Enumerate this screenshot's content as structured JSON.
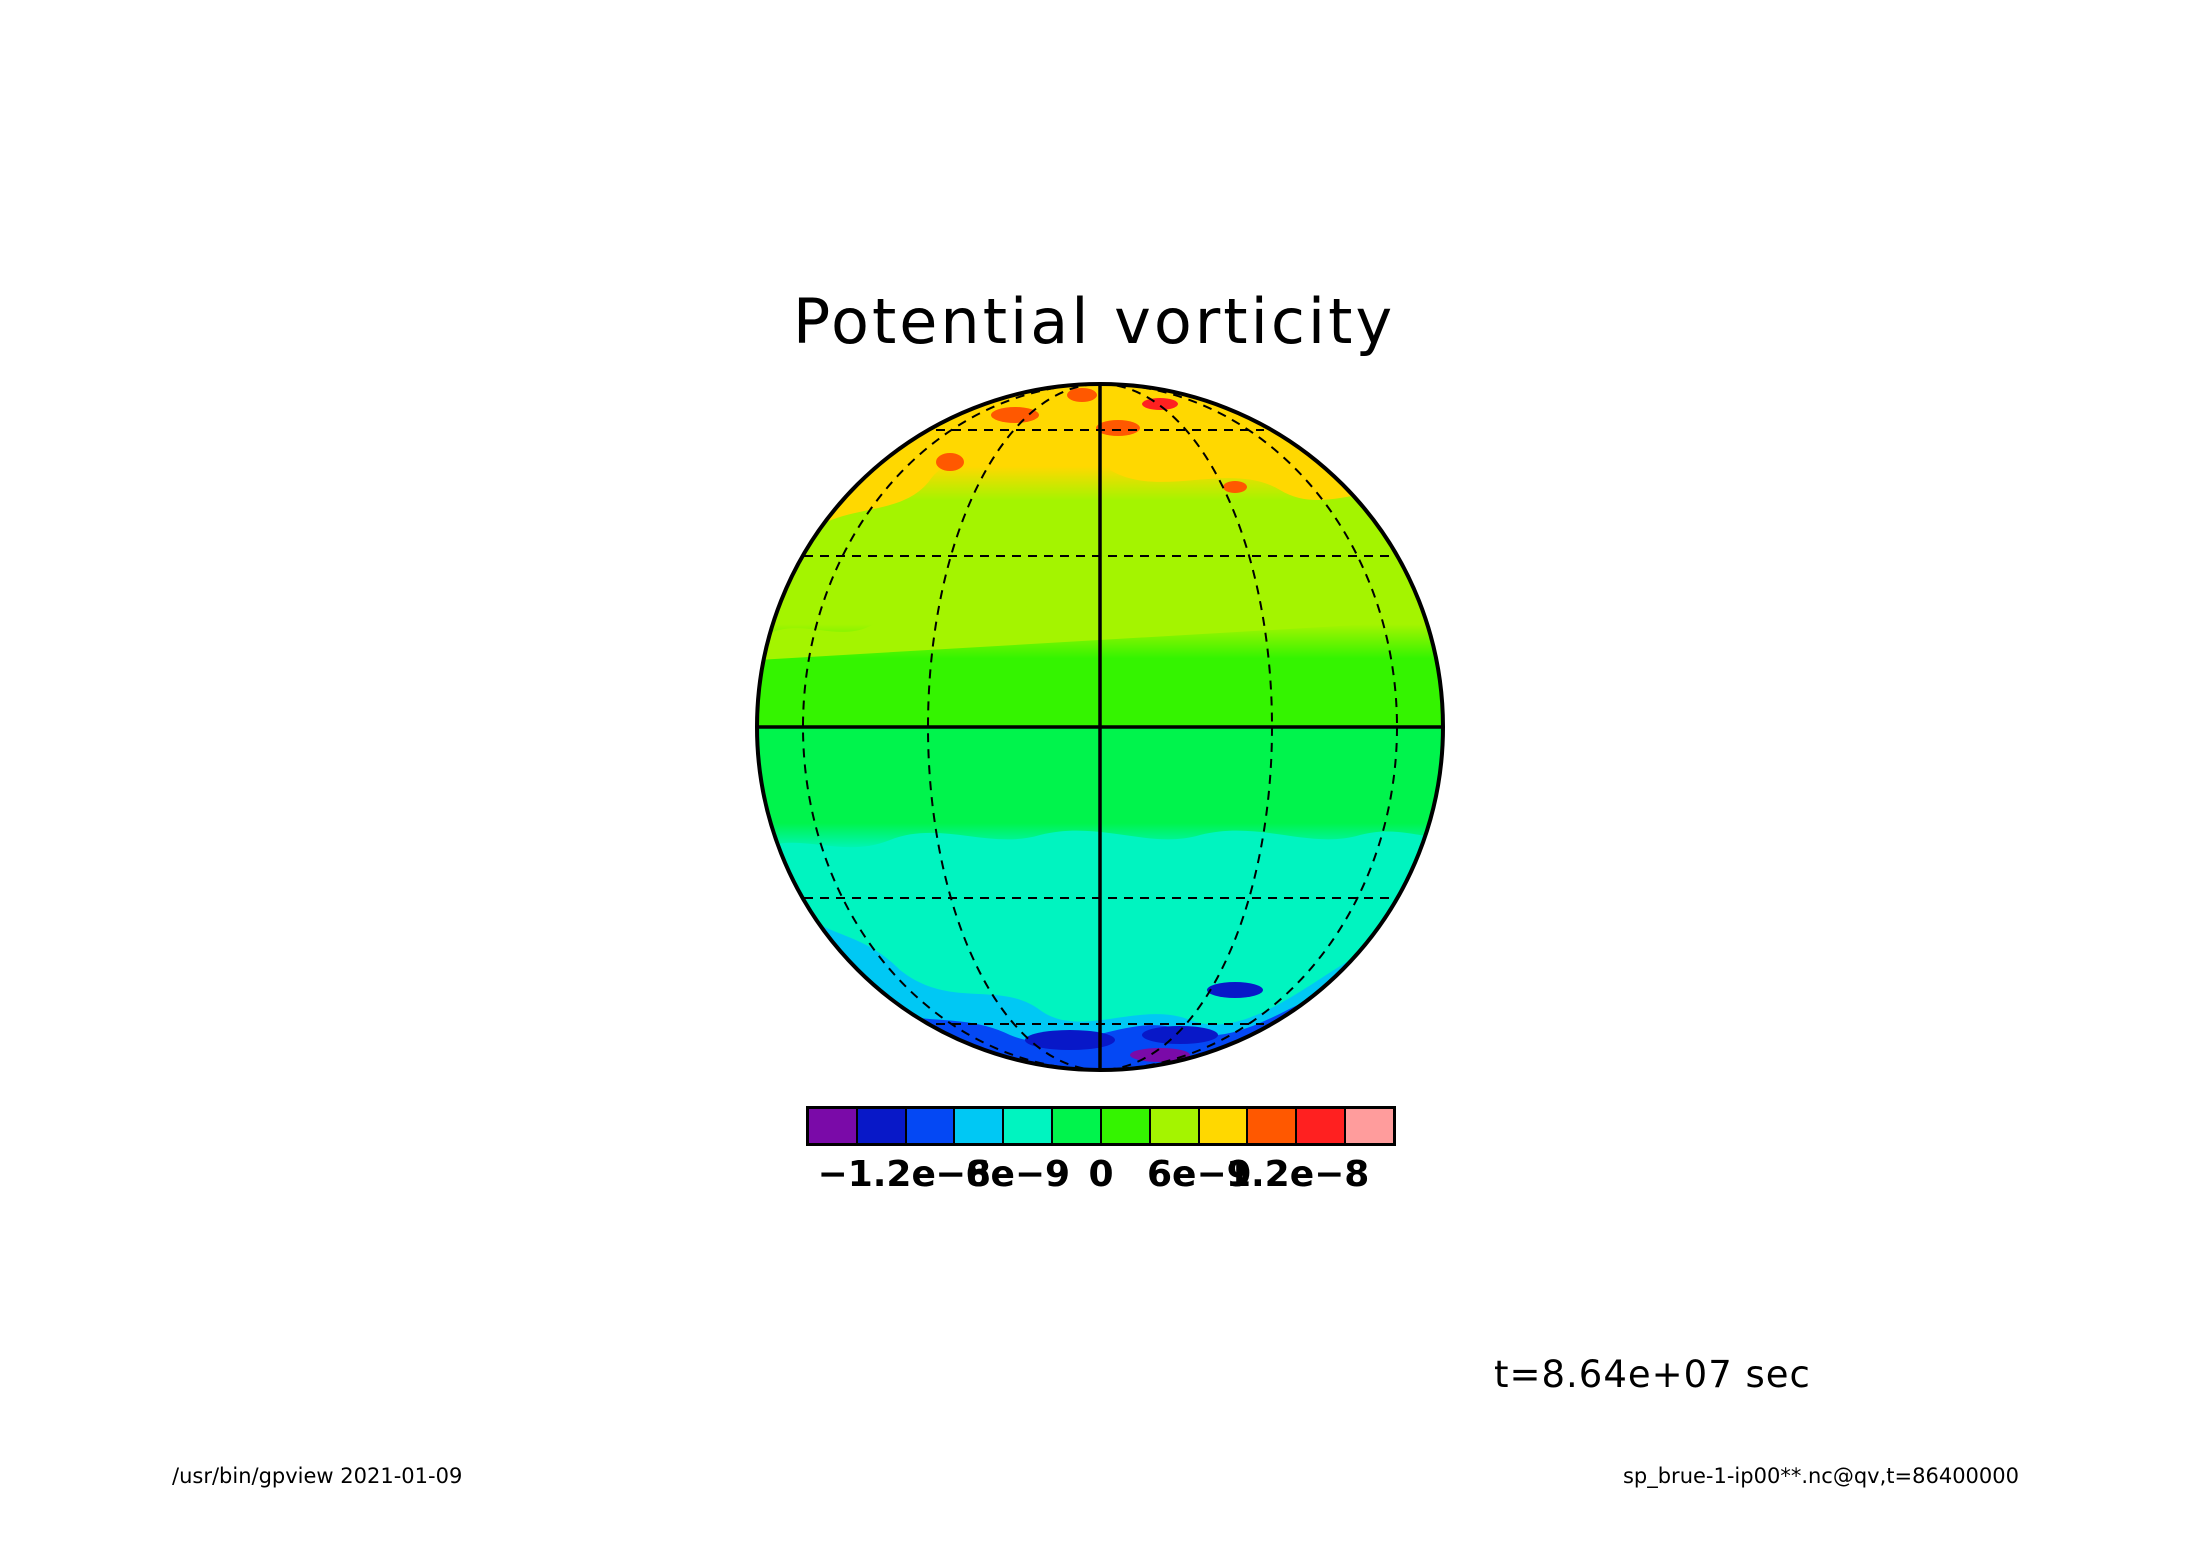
{
  "title": "Potential vorticity",
  "colorbar": {
    "colors": [
      "#7a0aa8",
      "#0818c8",
      "#0448f4",
      "#00c8f4",
      "#00f4c0",
      "#00f44c",
      "#34f400",
      "#a4f400",
      "#ffd800",
      "#ff5800",
      "#ff2020",
      "#ff9c9c"
    ],
    "labels": [
      "−1.2e−8",
      "−6e−9",
      "0",
      "6e−9",
      "1.2e−8"
    ],
    "label_values": [
      -1.2e-08,
      -6e-09,
      0,
      6e-09,
      1.2e-08
    ],
    "range": [
      -1.8e-08,
      1.8e-08
    ],
    "interval": 3e-09
  },
  "timestamp": "t=8.64e+07 sec",
  "footer": {
    "left": "/usr/bin/gpview  2021-01-09",
    "right": "sp_brue-1-ip00**.nc@qv,t=86400000"
  }
}
